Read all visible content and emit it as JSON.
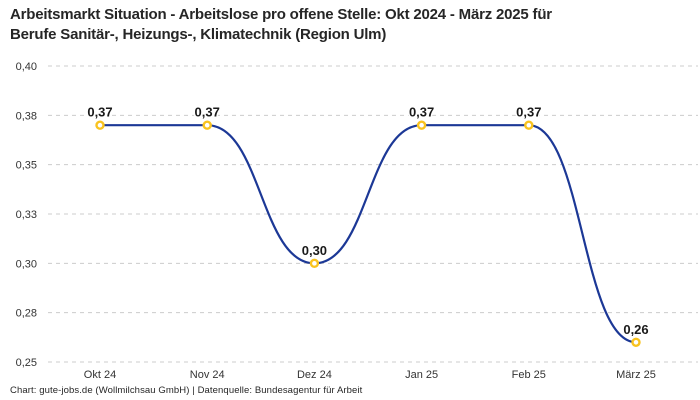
{
  "title": {
    "line1": "Arbeitsmarkt Situation - Arbeitslose pro offene Stelle: Okt 2024 - März 2025 für",
    "line2": "Berufe Sanitär-, Heizungs-, Klimatechnik (Region Ulm)"
  },
  "footer": "Chart: gute-jobs.de (Wollmilchsau GmbH) | Datenquelle: Bundesagentur für Arbeit",
  "chart_data": {
    "type": "line",
    "title": "Arbeitsmarkt Situation - Arbeitslose pro offene Stelle: Okt 2024 - März 2025 für Berufe Sanitär-, Heizungs-, Klimatechnik (Region Ulm)",
    "categories": [
      "Okt 24",
      "Nov 24",
      "Dez 24",
      "Jan 25",
      "Feb 25",
      "März 25"
    ],
    "values": [
      0.37,
      0.37,
      0.3,
      0.37,
      0.37,
      0.26
    ],
    "value_labels": [
      "0,37",
      "0,37",
      "0,30",
      "0,37",
      "0,37",
      "0,26"
    ],
    "xlabel": "",
    "ylabel": "",
    "ylim": [
      0.25,
      0.4
    ],
    "y_ticks": [
      {
        "value": 0.4,
        "label": "0,40"
      },
      {
        "value": 0.375,
        "label": "0,38"
      },
      {
        "value": 0.35,
        "label": "0,35"
      },
      {
        "value": 0.325,
        "label": "0,33"
      },
      {
        "value": 0.3,
        "label": "0,30"
      },
      {
        "value": 0.275,
        "label": "0,28"
      },
      {
        "value": 0.25,
        "label": "0,25"
      }
    ],
    "grid": "horizontal-dashed",
    "legend": "none",
    "line_smooth": true,
    "colors": {
      "line": "#1C3896",
      "marker_stroke": "#F9C31F",
      "marker_fill": "#FFFFFF",
      "grid": "#CCCCCC",
      "data_label": "#1A1A1A",
      "tick_label": "#333333",
      "title": "#262626",
      "background": "#FFFFFF"
    }
  }
}
